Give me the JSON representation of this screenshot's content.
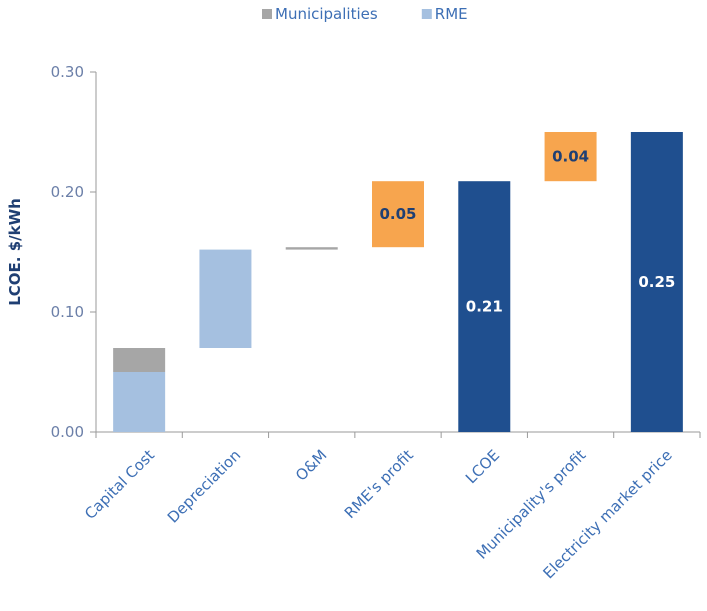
{
  "chart_data": {
    "type": "bar",
    "subtype": "waterfall",
    "title": "",
    "ylabel": "LCOE. $/kWh",
    "xlabel": "",
    "ylim": [
      0,
      0.3
    ],
    "yticks": [
      "0.00",
      "0.10",
      "0.20",
      "0.30"
    ],
    "grid": false,
    "legend_position": "top-center",
    "legend": [
      {
        "name": "Municipalities",
        "color": "#a6a6a6"
      },
      {
        "name": "RME",
        "color": "#a5c0e0"
      }
    ],
    "categories": [
      "Capital Cost",
      "Depreciation",
      "O&M",
      "RME's profit",
      "LCOE",
      "Municipality's profit",
      "Electricity market price"
    ],
    "segments": [
      {
        "category": 0,
        "series": "RME",
        "bottom": 0.0,
        "top": 0.05,
        "color": "#a5c0e0",
        "label": ""
      },
      {
        "category": 0,
        "series": "Municipalities",
        "bottom": 0.05,
        "top": 0.07,
        "color": "#a6a6a6",
        "label": ""
      },
      {
        "category": 1,
        "series": "RME",
        "bottom": 0.07,
        "top": 0.152,
        "color": "#a5c0e0",
        "label": ""
      },
      {
        "category": 2,
        "series": "RME",
        "bottom": 0.152,
        "top": 0.154,
        "color": "#a6a6a6",
        "label": ""
      },
      {
        "category": 3,
        "series": "RME",
        "bottom": 0.154,
        "top": 0.209,
        "color": "#f7a54e",
        "label": "0.05",
        "label_style": "dark"
      },
      {
        "category": 4,
        "series": "",
        "bottom": 0.0,
        "top": 0.209,
        "color": "#1f4f8f",
        "label": "0.21",
        "label_style": "light"
      },
      {
        "category": 5,
        "series": "Municipalities",
        "bottom": 0.209,
        "top": 0.25,
        "color": "#f7a54e",
        "label": "0.04",
        "label_style": "dark"
      },
      {
        "category": 6,
        "series": "",
        "bottom": 0.0,
        "top": 0.25,
        "color": "#1f4f8f",
        "label": "0.25",
        "label_style": "light"
      }
    ]
  }
}
